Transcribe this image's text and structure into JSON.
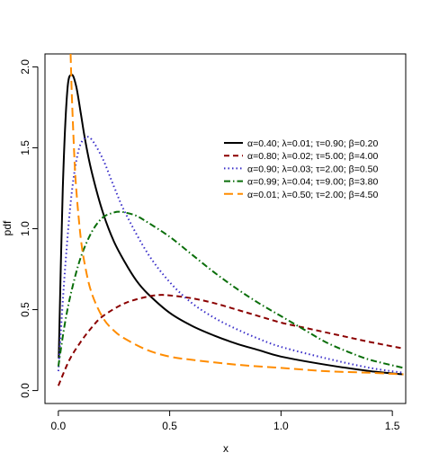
{
  "chart_data": {
    "type": "line",
    "title": "",
    "xlabel": "x",
    "ylabel": "pdf",
    "xlim": [
      -0.06,
      1.56
    ],
    "ylim": [
      -0.08,
      2.08
    ],
    "xticks": [
      0.0,
      0.5,
      1.0,
      1.5
    ],
    "xtick_labels": [
      "0.0",
      "0.5",
      "1.0",
      "1.5"
    ],
    "yticks": [
      0.0,
      0.5,
      1.0,
      1.5,
      2.0
    ],
    "ytick_labels": [
      "0.0",
      "0.5",
      "1.0",
      "1.5",
      "2.0"
    ],
    "grid": false,
    "legend_position": "center-right",
    "series": [
      {
        "name": "α=0.40; λ=0.01; τ=0.90; β=0.20",
        "color": "#000000",
        "dash": "solid",
        "x": [
          0.002,
          0.02,
          0.04,
          0.06,
          0.08,
          0.1,
          0.12,
          0.15,
          0.2,
          0.25,
          0.3,
          0.35,
          0.4,
          0.5,
          0.6,
          0.7,
          0.8,
          0.9,
          1.0,
          1.2,
          1.4,
          1.55
        ],
        "y": [
          0.2,
          1.25,
          1.85,
          1.95,
          1.88,
          1.72,
          1.55,
          1.35,
          1.1,
          0.92,
          0.79,
          0.68,
          0.6,
          0.48,
          0.4,
          0.34,
          0.29,
          0.25,
          0.21,
          0.16,
          0.12,
          0.1
        ]
      },
      {
        "name": "α=0.80; λ=0.02; τ=5.00; β=4.00",
        "color": "#8b0000",
        "dash": "dashed",
        "x": [
          0.0,
          0.05,
          0.1,
          0.15,
          0.2,
          0.3,
          0.4,
          0.45,
          0.5,
          0.6,
          0.7,
          0.8,
          0.9,
          1.0,
          1.1,
          1.2,
          1.3,
          1.4,
          1.55
        ],
        "y": [
          0.03,
          0.19,
          0.3,
          0.39,
          0.46,
          0.54,
          0.58,
          0.59,
          0.588,
          0.57,
          0.54,
          0.5,
          0.46,
          0.42,
          0.39,
          0.36,
          0.33,
          0.3,
          0.26
        ]
      },
      {
        "name": "α=0.90; λ=0.03; τ=2.00; β=0.50",
        "color": "#3a2fc9",
        "dash": "dotted",
        "x": [
          0.0,
          0.03,
          0.06,
          0.09,
          0.12,
          0.15,
          0.2,
          0.25,
          0.3,
          0.4,
          0.5,
          0.6,
          0.7,
          0.8,
          0.9,
          1.0,
          1.2,
          1.4,
          1.55
        ],
        "y": [
          0.12,
          0.75,
          1.22,
          1.48,
          1.56,
          1.55,
          1.43,
          1.26,
          1.1,
          0.85,
          0.67,
          0.54,
          0.45,
          0.38,
          0.32,
          0.27,
          0.2,
          0.14,
          0.11
        ]
      },
      {
        "name": "α=0.99; λ=0.04; τ=9.00; β=3.80",
        "color": "#0a6e0a",
        "dash": "dashdot",
        "x": [
          0.0,
          0.03,
          0.06,
          0.1,
          0.15,
          0.2,
          0.25,
          0.27,
          0.3,
          0.35,
          0.4,
          0.5,
          0.6,
          0.7,
          0.8,
          0.9,
          1.0,
          1.1,
          1.2,
          1.3,
          1.4,
          1.55
        ],
        "y": [
          0.15,
          0.42,
          0.62,
          0.82,
          0.98,
          1.07,
          1.1,
          1.105,
          1.1,
          1.08,
          1.04,
          0.95,
          0.84,
          0.73,
          0.63,
          0.54,
          0.46,
          0.38,
          0.3,
          0.24,
          0.19,
          0.14
        ]
      },
      {
        "name": "α=0.01; λ=0.50; τ=2.00; β=4.50",
        "color": "#ff8c00",
        "dash": "longdash",
        "x": [
          0.055,
          0.06,
          0.07,
          0.08,
          0.1,
          0.12,
          0.15,
          0.2,
          0.25,
          0.3,
          0.4,
          0.5,
          0.6,
          0.8,
          1.0,
          1.2,
          1.4,
          1.55
        ],
        "y": [
          2.08,
          1.85,
          1.5,
          1.25,
          0.95,
          0.77,
          0.6,
          0.45,
          0.37,
          0.32,
          0.25,
          0.21,
          0.19,
          0.16,
          0.14,
          0.12,
          0.11,
          0.1
        ]
      }
    ]
  }
}
